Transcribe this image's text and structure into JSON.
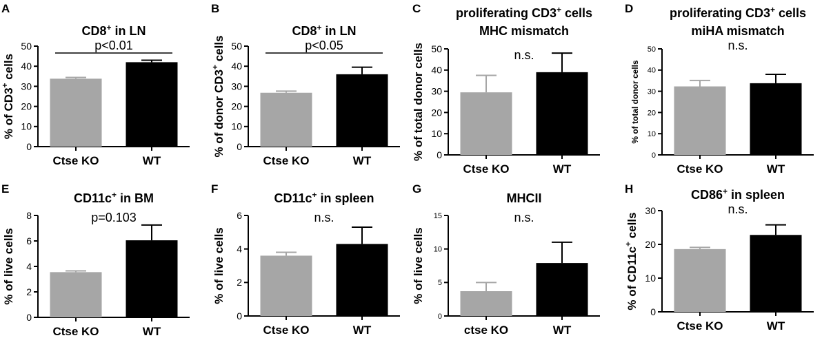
{
  "chart_data": [
    {
      "panel": "A",
      "type": "bar",
      "title": "CD8",
      "title_sup": "+",
      "title_suffix": " in LN",
      "ylabel": "% of CD3",
      "ylabel_sup": "+",
      "ylabel_suffix": " cells",
      "categories": [
        "Ctse KO",
        "WT"
      ],
      "values": [
        33.8,
        42.0
      ],
      "errors": [
        0.6,
        1.0
      ],
      "colors": [
        "#a6a6a6",
        "#000000"
      ],
      "ylim": [
        0,
        50
      ],
      "yticks": [
        0,
        10,
        20,
        30,
        40,
        50
      ],
      "stat": "p<0.01",
      "stat_bracket": true
    },
    {
      "panel": "B",
      "type": "bar",
      "title": "CD8",
      "title_sup": "+",
      "title_suffix": " in LN",
      "ylabel": "% of donor CD3",
      "ylabel_sup": "+",
      "ylabel_suffix": " cells",
      "categories": [
        "Ctse KO",
        "WT"
      ],
      "values": [
        26.8,
        36.0
      ],
      "errors": [
        0.8,
        3.5
      ],
      "colors": [
        "#a6a6a6",
        "#000000"
      ],
      "ylim": [
        0,
        50
      ],
      "yticks": [
        0,
        10,
        20,
        30,
        40,
        50
      ],
      "stat": "p<0.05",
      "stat_bracket": true
    },
    {
      "panel": "C",
      "type": "bar",
      "title": "proliferating CD3",
      "title_sup": "+",
      "title_suffix": " cells",
      "title_line2": "MHC mismatch",
      "ylabel": "% of total donor cells",
      "categories": [
        "Ctse KO",
        "WT"
      ],
      "values": [
        29.5,
        39.0
      ],
      "errors": [
        8.0,
        9.0
      ],
      "colors": [
        "#a6a6a6",
        "#000000"
      ],
      "ylim": [
        0,
        50
      ],
      "yticks": [
        0,
        10,
        20,
        30,
        40,
        50
      ],
      "stat": "n.s.",
      "stat_bracket": false
    },
    {
      "panel": "D",
      "type": "bar",
      "title": "proliferating CD3",
      "title_sup": "+",
      "title_suffix": " cells",
      "title_line2": "miHA mismatch",
      "ylabel": "% of total donor cells",
      "categories": [
        "Ctse KO",
        "WT"
      ],
      "values": [
        32.3,
        33.8
      ],
      "errors": [
        2.8,
        4.2
      ],
      "colors": [
        "#a6a6a6",
        "#000000"
      ],
      "ylim": [
        0,
        50
      ],
      "yticks": [
        0,
        10,
        20,
        30,
        40,
        50
      ],
      "stat": "n.s.",
      "stat_bracket": false
    },
    {
      "panel": "E",
      "type": "bar",
      "title": "CD11c",
      "title_sup": "+",
      "title_suffix": " in BM",
      "ylabel": "% of live cells",
      "categories": [
        "Ctse KO",
        "WT"
      ],
      "values": [
        3.55,
        6.05
      ],
      "errors": [
        0.1,
        1.2
      ],
      "colors": [
        "#a6a6a6",
        "#000000"
      ],
      "ylim": [
        0,
        8
      ],
      "yticks": [
        0,
        2,
        4,
        6,
        8
      ],
      "stat": "p=0.103",
      "stat_bracket": false
    },
    {
      "panel": "F",
      "type": "bar",
      "title": "CD11c",
      "title_sup": "+",
      "title_suffix": " in spleen",
      "ylabel": "% of live cells",
      "categories": [
        "Ctse KO",
        "WT"
      ],
      "values": [
        3.6,
        4.3
      ],
      "errors": [
        0.2,
        1.0
      ],
      "colors": [
        "#a6a6a6",
        "#000000"
      ],
      "ylim": [
        0,
        6
      ],
      "yticks": [
        0,
        2,
        4,
        6
      ],
      "stat": "n.s.",
      "stat_bracket": false
    },
    {
      "panel": "G",
      "type": "bar",
      "title": "MHCII",
      "title_sup": "",
      "title_suffix": "",
      "ylabel": "% of live cells",
      "categories": [
        "ctse KO",
        "WT"
      ],
      "values": [
        3.7,
        7.9
      ],
      "errors": [
        1.3,
        3.1
      ],
      "colors": [
        "#a6a6a6",
        "#000000"
      ],
      "ylim": [
        0,
        15
      ],
      "yticks": [
        0,
        5,
        10,
        15
      ],
      "stat": "n.s.",
      "stat_bracket": false
    },
    {
      "panel": "H",
      "type": "bar",
      "title": "CD86",
      "title_sup": "+",
      "title_suffix": " in spleen",
      "ylabel": "% of CD11c",
      "ylabel_sup": "+",
      "ylabel_suffix": " cells",
      "categories": [
        "Ctse KO",
        "WT"
      ],
      "values": [
        18.6,
        22.8
      ],
      "errors": [
        0.5,
        3.0
      ],
      "colors": [
        "#a6a6a6",
        "#000000"
      ],
      "ylim": [
        0,
        30
      ],
      "yticks": [
        0,
        10,
        20,
        30
      ],
      "stat": "n.s.",
      "stat_bracket": false
    }
  ]
}
